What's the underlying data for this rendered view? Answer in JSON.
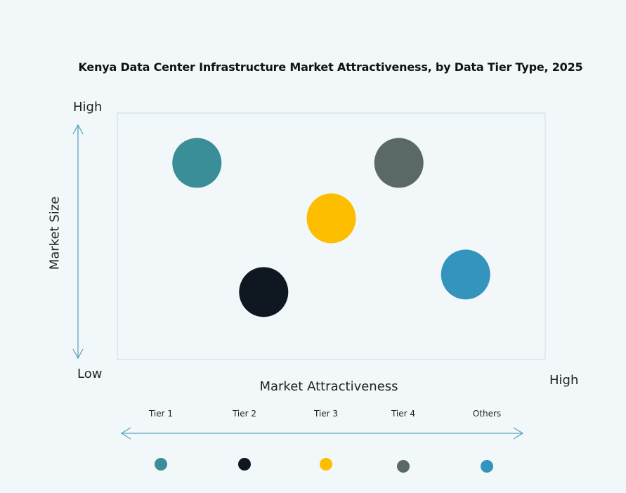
{
  "chart_data": {
    "type": "scatter",
    "title": "Kenya Data Center Infrastructure Market Attractiveness,  by Data Tier Type, 2025",
    "xlabel": "Market Attractiveness",
    "ylabel": "Market Size",
    "x_low_label": "Low",
    "x_high_label": "High",
    "y_high_label": "High",
    "xlim": [
      0,
      100
    ],
    "ylim": [
      0,
      100
    ],
    "grid": false,
    "legend_position": "bottom",
    "points": [
      {
        "name": "Tier 1",
        "x": 18.6,
        "y": 79.8,
        "color": "#3a8e98"
      },
      {
        "name": "Tier 2",
        "x": 34.2,
        "y": 27.4,
        "color": "#0f1720"
      },
      {
        "name": "Tier 3",
        "x": 50.0,
        "y": 57.3,
        "color": "#fdbe00"
      },
      {
        "name": "Tier 4",
        "x": 65.8,
        "y": 79.8,
        "color": "#5b6868"
      },
      {
        "name": "Others",
        "x": 81.4,
        "y": 34.5,
        "color": "#3594bd"
      }
    ],
    "arrow_color": "#5ba3bf",
    "frame_color": "#c8dde3"
  }
}
